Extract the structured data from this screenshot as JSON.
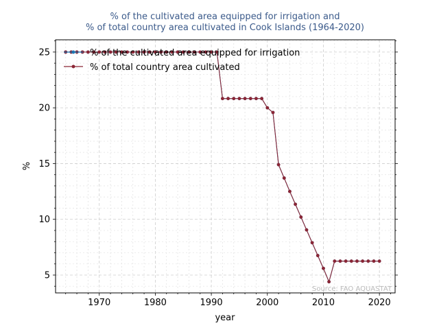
{
  "chart_data": {
    "type": "line",
    "title_lines": [
      "% of the cultivated area equipped for irrigation and",
      "% of total country area cultivated in Cook Islands (1964-2020)"
    ],
    "xlabel": "year",
    "ylabel": "%",
    "xlim": [
      1962.2,
      2022.8
    ],
    "ylim": [
      3.4,
      26.1
    ],
    "xticks": [
      1970,
      1980,
      1990,
      2000,
      2010,
      2020
    ],
    "yticks": [
      5,
      10,
      15,
      20,
      25
    ],
    "grid": true,
    "legend_position": "top-left",
    "source_note": "Source: FAO AQUASTAT",
    "x": [
      1964,
      1965,
      1966,
      1967,
      1968,
      1969,
      1970,
      1971,
      1972,
      1973,
      1974,
      1975,
      1976,
      1977,
      1978,
      1979,
      1980,
      1981,
      1982,
      1983,
      1984,
      1985,
      1986,
      1987,
      1988,
      1989,
      1990,
      1991,
      1992,
      1993,
      1994,
      1995,
      1996,
      1997,
      1998,
      1999,
      2000,
      2001,
      2002,
      2003,
      2004,
      2005,
      2006,
      2007,
      2008,
      2009,
      2010,
      2011,
      2012,
      2013,
      2014,
      2015,
      2016,
      2017,
      2018,
      2019,
      2020
    ],
    "series": [
      {
        "name": "% of the cultivated area equipped for irrigation",
        "color": "#1f77b4",
        "values": [
          25,
          25,
          25,
          25,
          25,
          25,
          25,
          25,
          25,
          25,
          25,
          25,
          25,
          25,
          25,
          25,
          25,
          25,
          25,
          25,
          25,
          25,
          25,
          25,
          25,
          25,
          25,
          25,
          20.83,
          20.83,
          20.83,
          20.83,
          20.83,
          20.83,
          20.83,
          20.83,
          20,
          19.58,
          14.9,
          13.7,
          12.5,
          11.35,
          10.2,
          9.05,
          7.9,
          6.75,
          5.6,
          4.4,
          6.25,
          6.25,
          6.25,
          6.25,
          6.25,
          6.25,
          6.25,
          6.25,
          6.25
        ]
      },
      {
        "name": "% of total country area cultivated",
        "color": "#8b2635",
        "values": [
          25,
          25,
          25,
          25,
          25,
          25,
          25,
          25,
          25,
          25,
          25,
          25,
          25,
          25,
          25,
          25,
          25,
          25,
          25,
          25,
          25,
          25,
          25,
          25,
          25,
          25,
          25,
          25,
          20.83,
          20.83,
          20.83,
          20.83,
          20.83,
          20.83,
          20.83,
          20.83,
          20,
          19.58,
          14.9,
          13.7,
          12.5,
          11.35,
          10.2,
          9.05,
          7.9,
          6.75,
          5.6,
          4.4,
          6.25,
          6.25,
          6.25,
          6.25,
          6.25,
          6.25,
          6.25,
          6.25,
          6.25
        ]
      }
    ]
  }
}
